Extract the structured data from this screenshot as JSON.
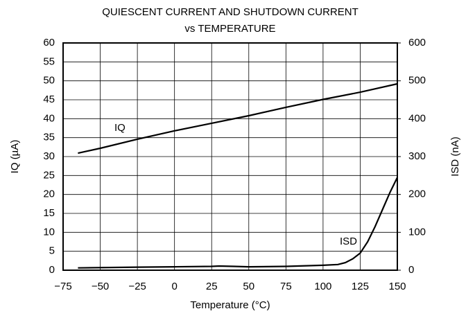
{
  "chart_data": {
    "type": "line",
    "title": "QUIESCENT CURRENT  AND SHUTDOWN CURRENT",
    "subtitle": "vs TEMPERATURE",
    "x_label": "Temperature (°C)",
    "y_label": "IQ (µA)",
    "y2_label": "ISD (nA)",
    "xlim": [
      -75,
      150
    ],
    "xticks": [
      {
        "value": -75,
        "label": "−75"
      },
      {
        "value": -50,
        "label": "−50"
      },
      {
        "value": -25,
        "label": "−25"
      },
      0,
      25,
      50,
      75,
      100,
      125,
      150
    ],
    "ylim": [
      0,
      60
    ],
    "yticks": [
      0,
      5,
      10,
      15,
      20,
      25,
      30,
      35,
      40,
      45,
      50,
      55,
      60
    ],
    "y2lim": [
      0,
      600
    ],
    "y2ticks": [
      0,
      100,
      200,
      300,
      400,
      500,
      600
    ],
    "grid": true,
    "series": [
      {
        "name": "IQ",
        "color": "#000000",
        "x": [
          -65,
          -50,
          -25,
          0,
          25,
          50,
          75,
          100,
          125,
          150
        ],
        "values": [
          30.9,
          32.2,
          34.6,
          36.8,
          38.8,
          40.8,
          43.0,
          45.1,
          47.0,
          49.2
        ]
      },
      {
        "name": "ISD",
        "color": "#000000",
        "axis": "y2",
        "x": [
          -65,
          -25,
          0,
          25,
          30,
          40,
          50,
          75,
          100,
          110,
          115,
          120,
          125,
          130,
          135,
          140,
          145,
          150
        ],
        "values": [
          6,
          8,
          9,
          10,
          11,
          10,
          9,
          10,
          13,
          15,
          20,
          30,
          45,
          75,
          115,
          160,
          205,
          245
        ]
      }
    ]
  }
}
